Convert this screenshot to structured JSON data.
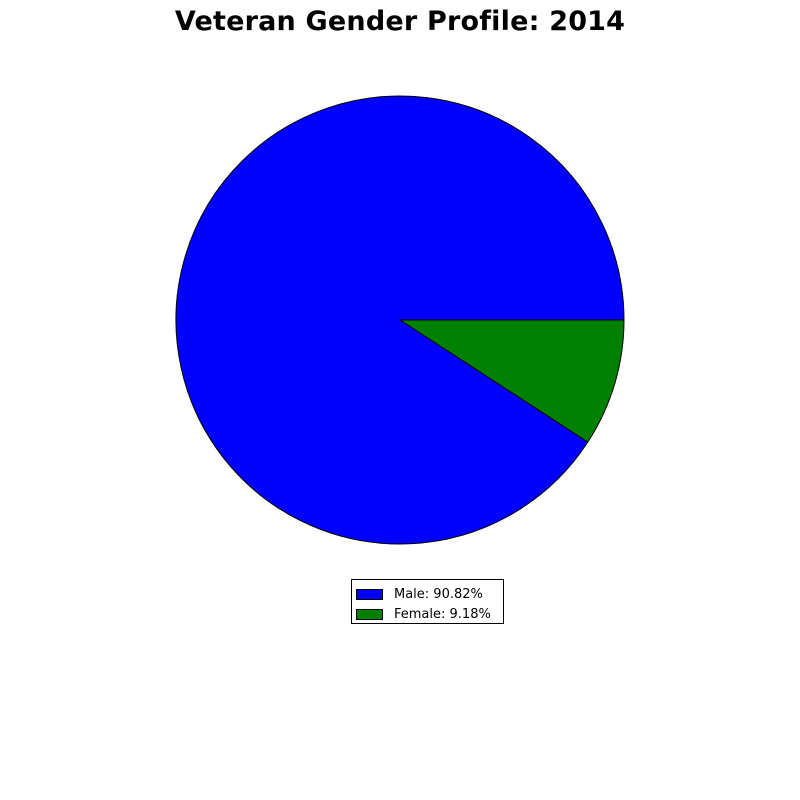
{
  "chart_data": {
    "type": "pie",
    "title": "Veteran Gender Profile: 2014",
    "slices": [
      {
        "label": "Male",
        "value": 90.82,
        "color": "#0000ff",
        "legend_text": "Male: 90.82%"
      },
      {
        "label": "Female",
        "value": 9.18,
        "color": "#008000",
        "legend_text": "Female: 9.18%"
      }
    ],
    "start_angle_deg": 0,
    "direction": "counterclockwise",
    "legend_placement": "bottom-center"
  }
}
